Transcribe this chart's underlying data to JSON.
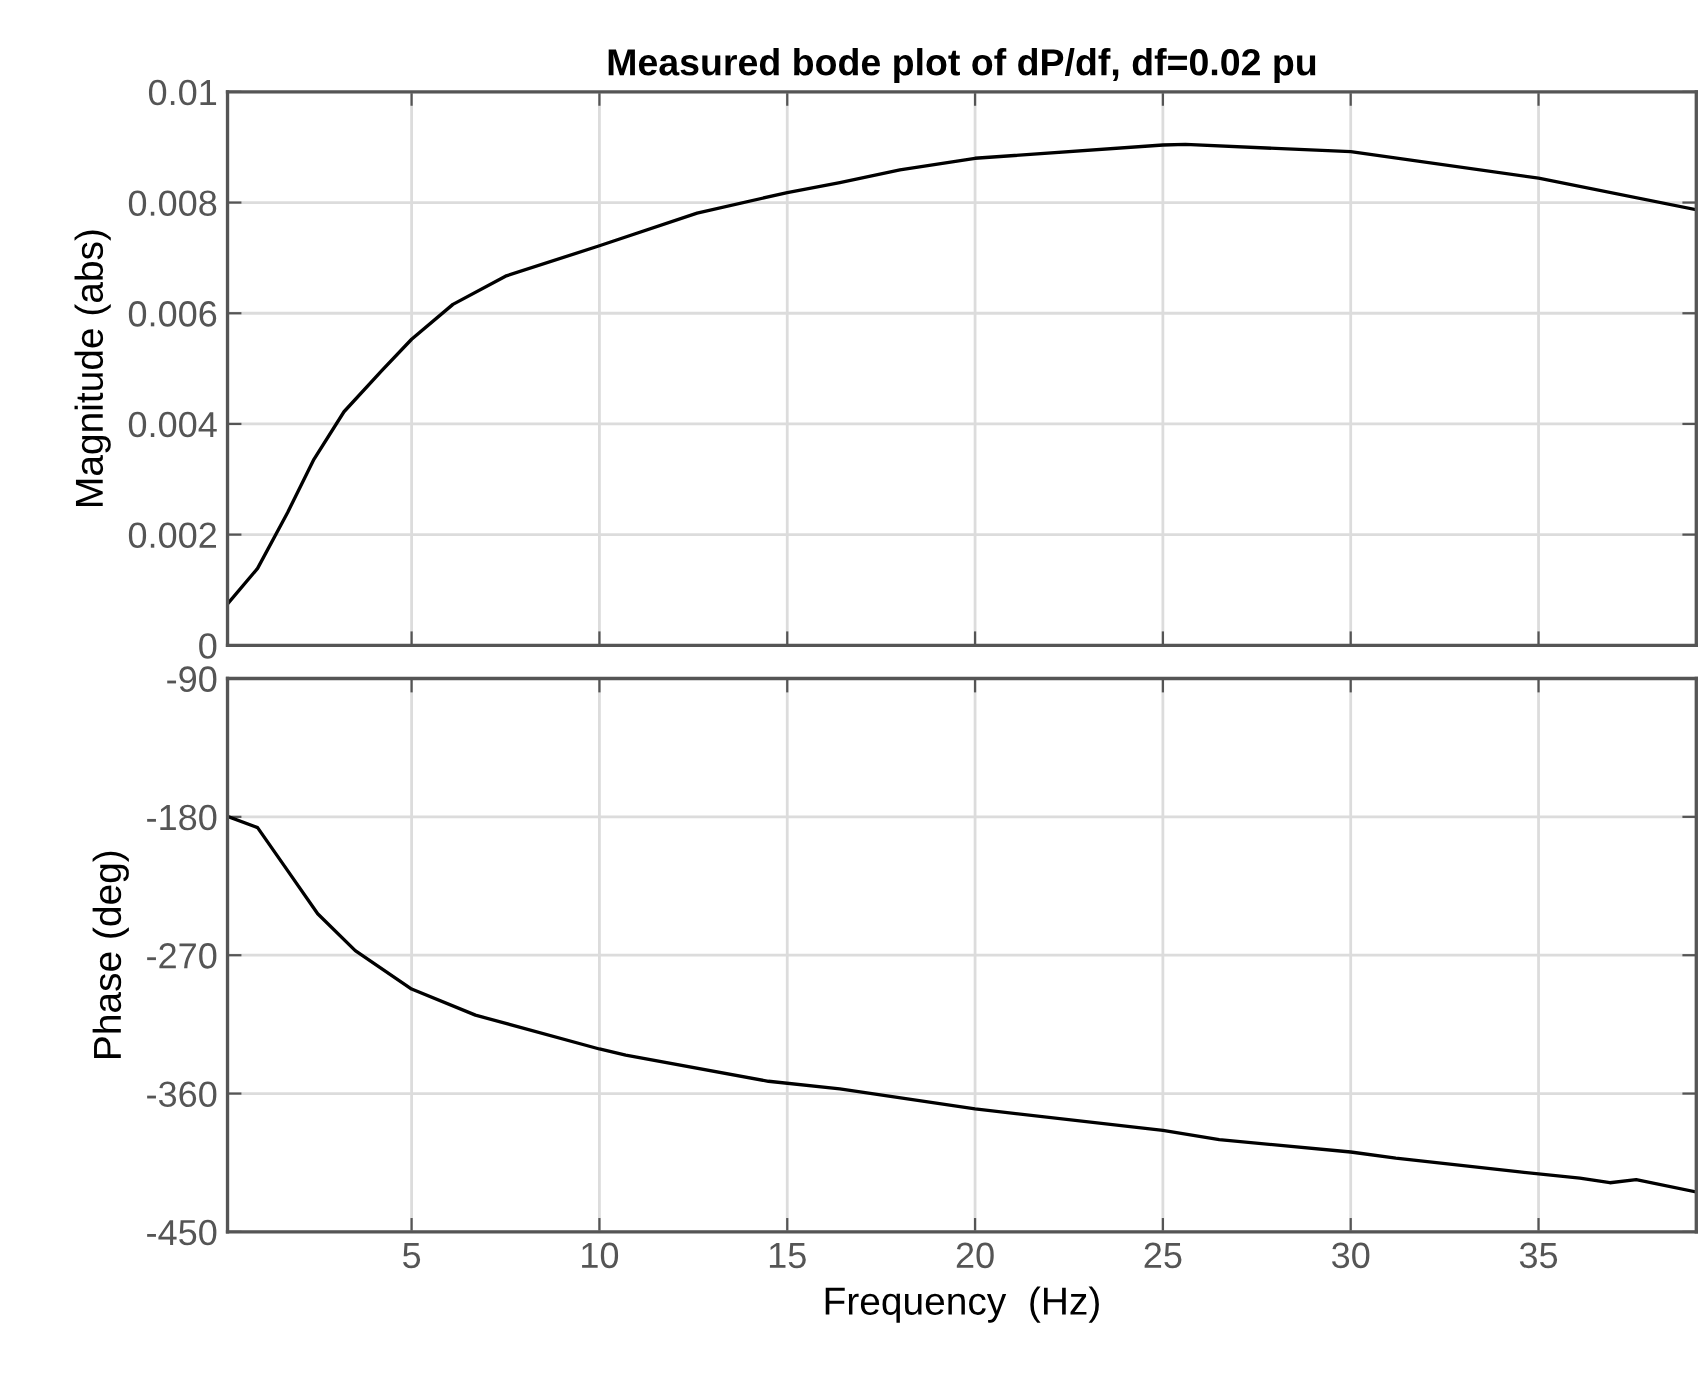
{
  "chart_data": [
    {
      "type": "line",
      "title": "Measured bode plot of dP/df, df=0.02 pu",
      "ylabel": "Magnitude (abs)",
      "tick_labels": "y",
      "grid": true,
      "xlim": [
        0.1,
        39.2
      ],
      "xticks": [
        5,
        10,
        15,
        20,
        25,
        30,
        35
      ],
      "ylim": [
        0,
        0.01
      ],
      "yticks": [
        0,
        0.002,
        0.004,
        0.006,
        0.008,
        0.01
      ],
      "series": [
        {
          "color": "#000000",
          "x": [
            0.13,
            0.9,
            1.7,
            2.4,
            3.2,
            4.2,
            5.0,
            6.1,
            7.5,
            10.0,
            12.6,
            15.0,
            16.4,
            18.0,
            20.0,
            25.0,
            25.6,
            30.0,
            35.0,
            39.2
          ],
          "values": [
            0.00077,
            0.00139,
            0.0024,
            0.00336,
            0.00422,
            0.00496,
            0.00553,
            0.00616,
            0.00667,
            0.00722,
            0.00781,
            0.00818,
            0.00836,
            0.00859,
            0.0088,
            0.00904,
            0.00905,
            0.00892,
            0.00844,
            0.00787
          ]
        }
      ]
    },
    {
      "type": "line",
      "xlabel": "Frequency  (Hz)",
      "ylabel": "Phase (deg)",
      "grid": true,
      "xlim": [
        0.1,
        39.2
      ],
      "xticks": [
        5,
        10,
        15,
        20,
        25,
        30,
        35
      ],
      "ylim": [
        -450,
        -90
      ],
      "yticks": [
        -450,
        -360,
        -270,
        -180,
        -90
      ],
      "series": [
        {
          "color": "#000000",
          "x": [
            0.13,
            0.9,
            1.7,
            2.5,
            3.5,
            5.0,
            6.7,
            10.0,
            10.7,
            14.5,
            16.4,
            20.0,
            25.0,
            26.5,
            30.0,
            31.2,
            34.5,
            36.1,
            36.9,
            37.6,
            39.2
          ],
          "values": [
            -180,
            -187,
            -215,
            -243,
            -267,
            -292,
            -309,
            -331,
            -335,
            -352,
            -357,
            -370,
            -384,
            -390,
            -398,
            -402,
            -411,
            -415,
            -418,
            -416,
            -424
          ]
        }
      ]
    }
  ]
}
